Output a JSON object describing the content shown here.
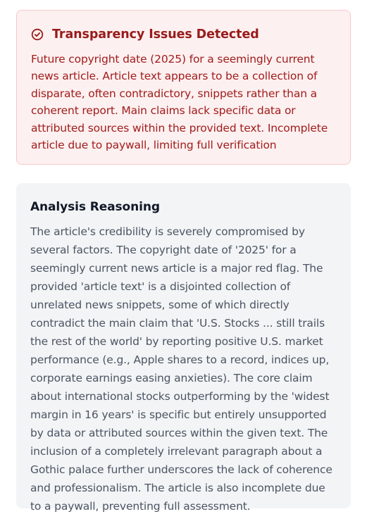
{
  "alert": {
    "icon": "check-circle-icon",
    "color": "#991b1b",
    "title": "Transparency Issues Detected",
    "body": "Future copyright date (2025) for a seemingly current news article. Article text appears to be a collection of disparate, often contradictory, snippets rather than a coherent report. Main claims lack specific data or attributed sources within the provided text. Incomplete article due to paywall, limiting full verification"
  },
  "analysis": {
    "title": "Analysis Reasoning",
    "body": "The article's credibility is severely compromised by several factors. The copyright date of '2025' for a seemingly current news article is a major red flag. The provided 'article text' is a disjointed collection of unrelated news snippets, some of which directly contradict the main claim that 'U.S. Stocks ... still trails the rest of the world' by reporting positive U.S. market performance (e.g., Apple shares to a record, indices up, corporate earnings easing anxieties). The core claim about international stocks outperforming by the 'widest margin in 16 years' is specific but entirely unsupported by data or attributed sources within the given text. The inclusion of a completely irrelevant paragraph about a Gothic palace further underscores the lack of coherence and professionalism. The article is also incomplete due to a paywall, preventing full assessment."
  }
}
